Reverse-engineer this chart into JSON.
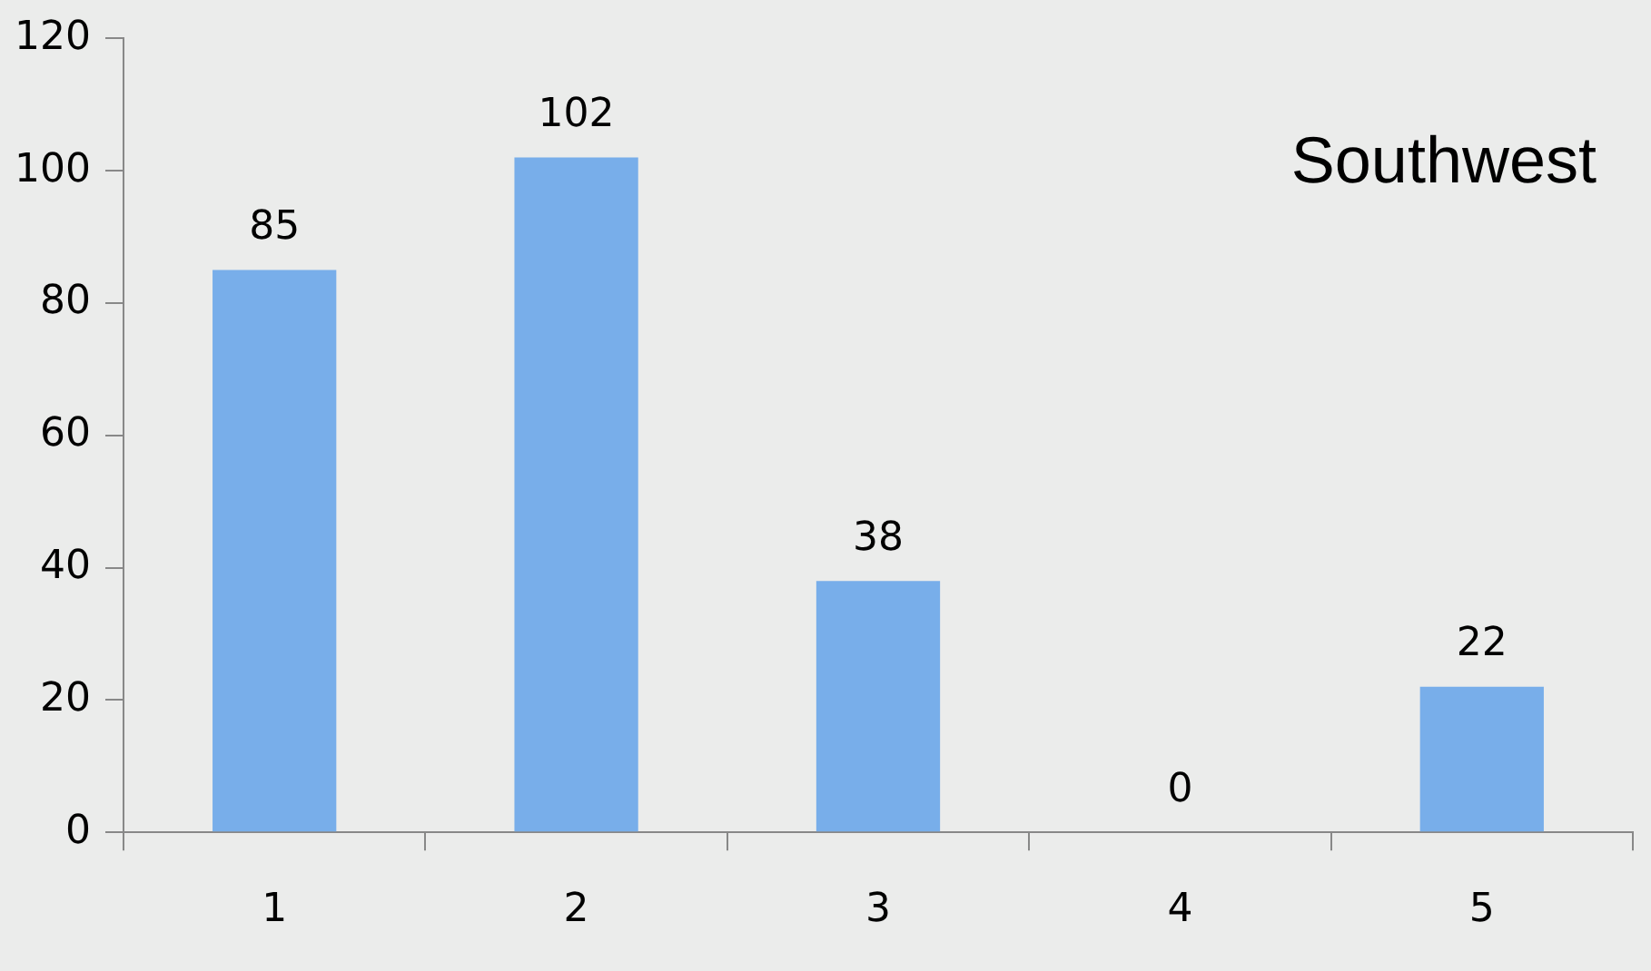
{
  "chart_data": {
    "type": "bar",
    "title": "Southwest",
    "categories": [
      "1",
      "2",
      "3",
      "4",
      "5"
    ],
    "values": [
      85,
      102,
      38,
      0,
      22
    ],
    "color": "#78aeea",
    "ylim": [
      0,
      120
    ],
    "yticks": [
      0,
      20,
      40,
      60,
      80,
      100,
      120
    ],
    "data_labels": true,
    "grid": false,
    "legend": false
  }
}
